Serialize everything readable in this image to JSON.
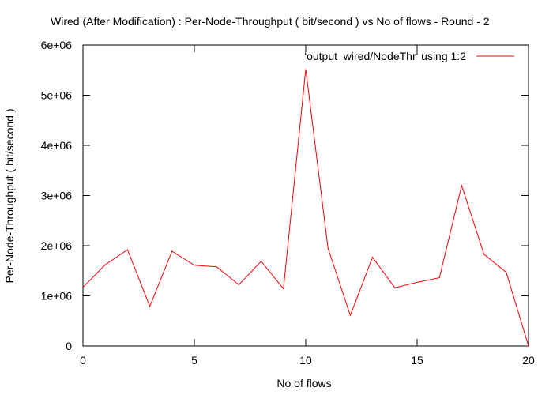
{
  "chart_data": {
    "type": "line",
    "title": "Wired (After Modification) : Per-Node-Throughput ( bit/second ) vs No of flows - Round - 2",
    "xlabel": "No of flows",
    "ylabel": "Per-Node-Throughput ( bit/second )",
    "xlim": [
      0,
      20
    ],
    "ylim": [
      0,
      6000000
    ],
    "xticks": [
      0,
      5,
      10,
      15,
      20
    ],
    "xtick_labels": [
      "0",
      "5",
      "10",
      "15",
      "20"
    ],
    "yticks": [
      0,
      1000000,
      2000000,
      3000000,
      4000000,
      5000000,
      6000000
    ],
    "ytick_labels": [
      "0",
      "1e+06",
      "2e+06",
      "3e+06",
      "4e+06",
      "5e+06",
      "6e+06"
    ],
    "grid": false,
    "legend_position": "top-right",
    "series": [
      {
        "name": "'output_wired/NodeThr' using 1:2",
        "color": "#ff0000",
        "x": [
          0,
          1,
          2,
          3,
          4,
          5,
          6,
          7,
          8,
          9,
          10,
          11,
          12,
          13,
          14,
          15,
          16,
          17,
          18,
          19,
          20
        ],
        "y": [
          1170000,
          1620000,
          1920000,
          790000,
          1890000,
          1610000,
          1580000,
          1220000,
          1690000,
          1140000,
          5520000,
          1950000,
          610000,
          1770000,
          1160000,
          1270000,
          1360000,
          3200000,
          1830000,
          1470000,
          0
        ]
      }
    ]
  }
}
